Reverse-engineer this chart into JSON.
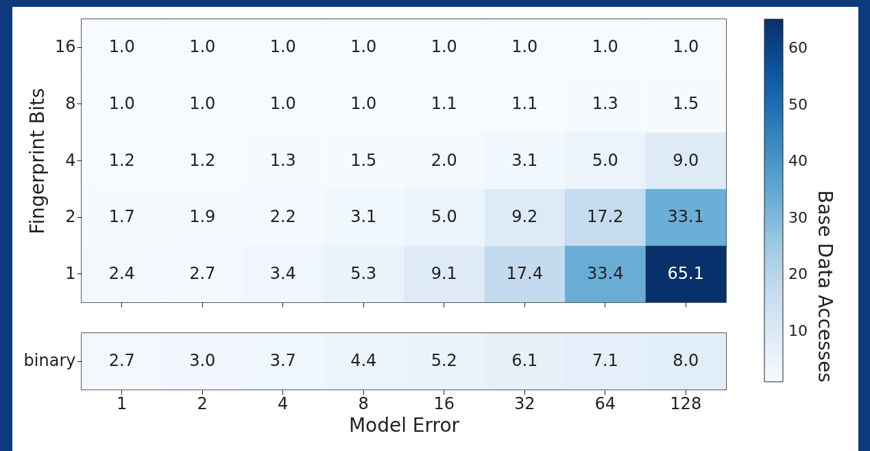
{
  "chart_data": [
    {
      "type": "heatmap",
      "ylabel": "Fingerprint Bits",
      "clabel": "Base Data Accesses",
      "categories": [
        "1",
        "2",
        "4",
        "8",
        "16",
        "32",
        "64",
        "128"
      ],
      "y_categories": [
        "16",
        "8",
        "4",
        "2",
        "1"
      ],
      "cells": [
        [
          1.0,
          1.0,
          1.0,
          1.0,
          1.0,
          1.0,
          1.0,
          1.0
        ],
        [
          1.0,
          1.0,
          1.0,
          1.0,
          1.1,
          1.1,
          1.3,
          1.5
        ],
        [
          1.2,
          1.2,
          1.3,
          1.5,
          2.0,
          3.1,
          5.0,
          9.0
        ],
        [
          1.7,
          1.9,
          2.2,
          3.1,
          5.0,
          9.2,
          17.2,
          33.1
        ],
        [
          2.4,
          2.7,
          3.4,
          5.3,
          9.1,
          17.4,
          33.4,
          65.1
        ]
      ],
      "cell_labels": [
        [
          "1.0",
          "1.0",
          "1.0",
          "1.0",
          "1.0",
          "1.0",
          "1.0",
          "1.0"
        ],
        [
          "1.0",
          "1.0",
          "1.0",
          "1.0",
          "1.1",
          "1.1",
          "1.3",
          "1.5"
        ],
        [
          "1.2",
          "1.2",
          "1.3",
          "1.5",
          "2.0",
          "3.1",
          "5.0",
          "9.0"
        ],
        [
          "1.7",
          "1.9",
          "2.2",
          "3.1",
          "5.0",
          "9.2",
          "17.2",
          "33.1"
        ],
        [
          "2.4",
          "2.7",
          "3.4",
          "5.3",
          "9.1",
          "17.4",
          "33.4",
          "65.1"
        ]
      ],
      "clim": [
        1.0,
        65.1
      ],
      "cticks": [
        10,
        20,
        30,
        40,
        50,
        60
      ],
      "tick_labels": "y"
    },
    {
      "type": "heatmap",
      "xlabel": "Model Error",
      "categories": [
        "1",
        "2",
        "4",
        "8",
        "16",
        "32",
        "64",
        "128"
      ],
      "y_categories": [
        "binary"
      ],
      "cells": [
        [
          2.7,
          3.0,
          3.7,
          4.4,
          5.2,
          6.1,
          7.1,
          8.0
        ]
      ],
      "cell_labels": [
        [
          "2.7",
          "3.0",
          "3.7",
          "4.4",
          "5.2",
          "6.1",
          "7.1",
          "8.0"
        ]
      ]
    }
  ]
}
